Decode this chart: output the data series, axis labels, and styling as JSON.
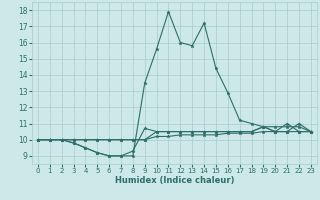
{
  "xlabel": "Humidex (Indice chaleur)",
  "xlim": [
    -0.5,
    23.5
  ],
  "ylim": [
    8.5,
    18.5
  ],
  "yticks": [
    9,
    10,
    11,
    12,
    13,
    14,
    15,
    16,
    17,
    18
  ],
  "xticks": [
    0,
    1,
    2,
    3,
    4,
    5,
    6,
    7,
    8,
    9,
    10,
    11,
    12,
    13,
    14,
    15,
    16,
    17,
    18,
    19,
    20,
    21,
    22,
    23
  ],
  "bg_color": "#cce8e8",
  "grid_color": "#aacccc",
  "line_color": "#2e6e6a",
  "lines": [
    [
      10.0,
      10.0,
      10.0,
      10.0,
      10.0,
      10.0,
      10.0,
      10.0,
      10.0,
      10.0,
      10.2,
      10.2,
      10.3,
      10.3,
      10.3,
      10.3,
      10.4,
      10.4,
      10.4,
      10.5,
      10.5,
      10.5,
      10.5,
      10.5
    ],
    [
      10.0,
      10.0,
      10.0,
      10.0,
      10.0,
      10.0,
      10.0,
      10.0,
      10.0,
      10.0,
      10.5,
      10.5,
      10.5,
      10.5,
      10.5,
      10.5,
      10.5,
      10.5,
      10.5,
      10.8,
      10.5,
      10.5,
      11.0,
      10.5
    ],
    [
      10.0,
      10.0,
      10.0,
      9.8,
      9.5,
      9.2,
      9.0,
      9.0,
      9.3,
      10.7,
      10.5,
      10.5,
      10.5,
      10.5,
      10.5,
      10.5,
      10.5,
      10.5,
      10.5,
      10.8,
      10.8,
      10.8,
      10.8,
      10.5
    ],
    [
      10.0,
      10.0,
      10.0,
      9.8,
      9.5,
      9.2,
      9.0,
      9.0,
      9.0,
      13.5,
      15.6,
      17.9,
      16.0,
      15.8,
      17.2,
      14.4,
      12.9,
      11.2,
      11.0,
      10.8,
      10.5,
      11.0,
      10.5,
      10.5
    ]
  ]
}
